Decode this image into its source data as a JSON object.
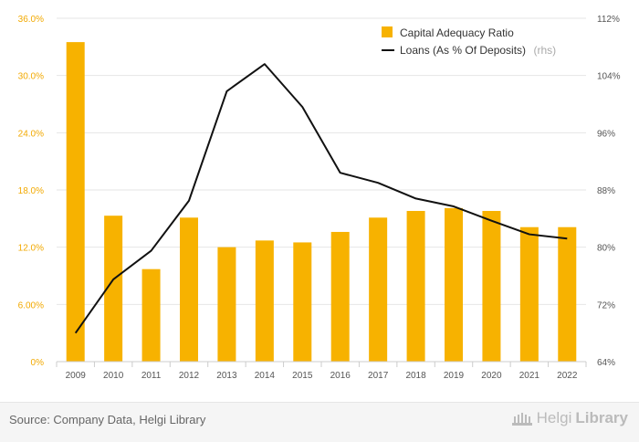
{
  "chart_data": {
    "type": "bar",
    "categories": [
      "2009",
      "2010",
      "2011",
      "2012",
      "2013",
      "2014",
      "2015",
      "2016",
      "2017",
      "2018",
      "2019",
      "2020",
      "2021",
      "2022"
    ],
    "series": [
      {
        "name": "Capital Adequacy Ratio",
        "type": "bar",
        "axis": "left",
        "color": "#f7b200",
        "values": [
          33.5,
          15.3,
          9.7,
          15.1,
          12.0,
          12.7,
          12.5,
          13.6,
          15.1,
          15.8,
          16.1,
          15.8,
          14.1,
          14.1
        ]
      },
      {
        "name": "Loans (As % Of Deposits)",
        "name_suffix": "(rhs)",
        "type": "line",
        "axis": "right",
        "color": "#111111",
        "values": [
          68.0,
          75.5,
          79.5,
          86.5,
          101.8,
          105.6,
          99.6,
          90.4,
          89.0,
          86.8,
          85.7,
          83.7,
          81.8,
          81.2
        ]
      }
    ],
    "y_left": {
      "ylim": [
        0,
        36
      ],
      "ticks": [
        "0%",
        "6.00%",
        "12.0%",
        "18.0%",
        "24.0%",
        "30.0%",
        "36.0%"
      ]
    },
    "y_right": {
      "ylim": [
        64,
        112
      ],
      "ticks": [
        "64%",
        "72%",
        "80%",
        "88%",
        "96%",
        "104%",
        "112%"
      ]
    },
    "grid": true,
    "legend_position": "top-right"
  },
  "footer": {
    "source": "Source: Company Data, Helgi Library",
    "logo_a": "Helgi",
    "logo_b": "Library"
  }
}
